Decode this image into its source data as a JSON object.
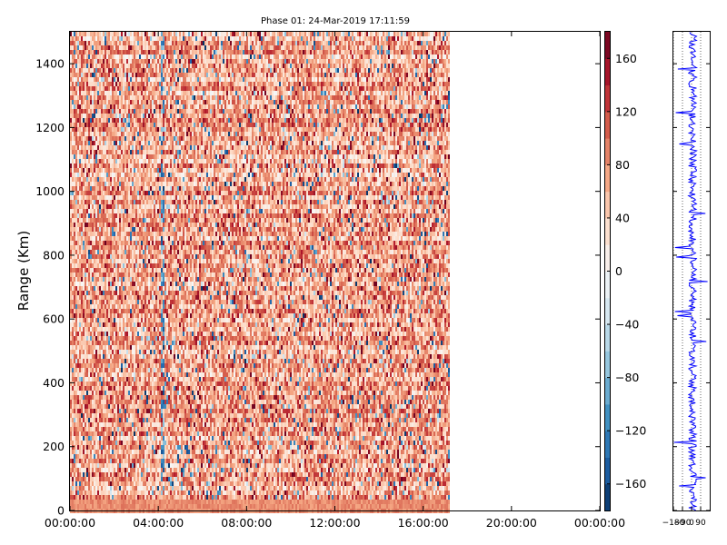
{
  "chart_data": [
    {
      "type": "heatmap",
      "title": "Phase 01: 24-Mar-2019 17:11:59",
      "xlabel": "",
      "ylabel": "Range (Km)",
      "x_tick_labels": [
        "00:00:00",
        "04:00:00",
        "08:00:00",
        "12:00:00",
        "16:00:00",
        "20:00:00",
        "00:00:00"
      ],
      "x_range_hours": [
        0,
        24
      ],
      "data_extent_hours": [
        0,
        17.2
      ],
      "ylim": [
        0,
        1500
      ],
      "y_ticks": [
        0,
        200,
        400,
        600,
        800,
        1000,
        1200,
        1400
      ],
      "near_range_band_km": [
        0,
        30
      ],
      "vertical_stripe_hour": 4.15,
      "value_range": [
        -180,
        180
      ],
      "value_distribution": "mostly 20 to 120 degrees (light to mid red), sparse negative cells (blue)",
      "colormap": "RdBu_r",
      "colorbar": {
        "ticks": [
          -160,
          -120,
          -80,
          -40,
          0,
          40,
          80,
          120,
          160
        ],
        "range": [
          -180,
          180
        ]
      },
      "grid": false
    },
    {
      "type": "line",
      "title": "",
      "xlabel": "",
      "ylabel": "",
      "x_tick_labels": [
        "−180",
        "−90",
        "0",
        "90"
      ],
      "x_ticks": [
        -180,
        -90,
        0,
        90
      ],
      "xlim": [
        -180,
        180
      ],
      "ylim": [
        0,
        1500
      ],
      "series_color": "#0000ff",
      "grid": "dotted vertical lines at ticks",
      "profile_description": "phase vs range profile, mostly between -40 and 60 degrees with spikes up to +/-180"
    }
  ],
  "colors": {
    "negative": "#2166ac",
    "positive": "#b2182b",
    "profile_line": "#0000ff"
  }
}
